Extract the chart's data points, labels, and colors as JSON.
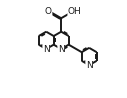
{
  "bg_color": "#ffffff",
  "line_color": "#1a1a1a",
  "line_width": 1.4,
  "font_size": 6.5,
  "xlim": [
    0,
    10
  ],
  "ylim": [
    0,
    8.5
  ],
  "bl": 1.3
}
